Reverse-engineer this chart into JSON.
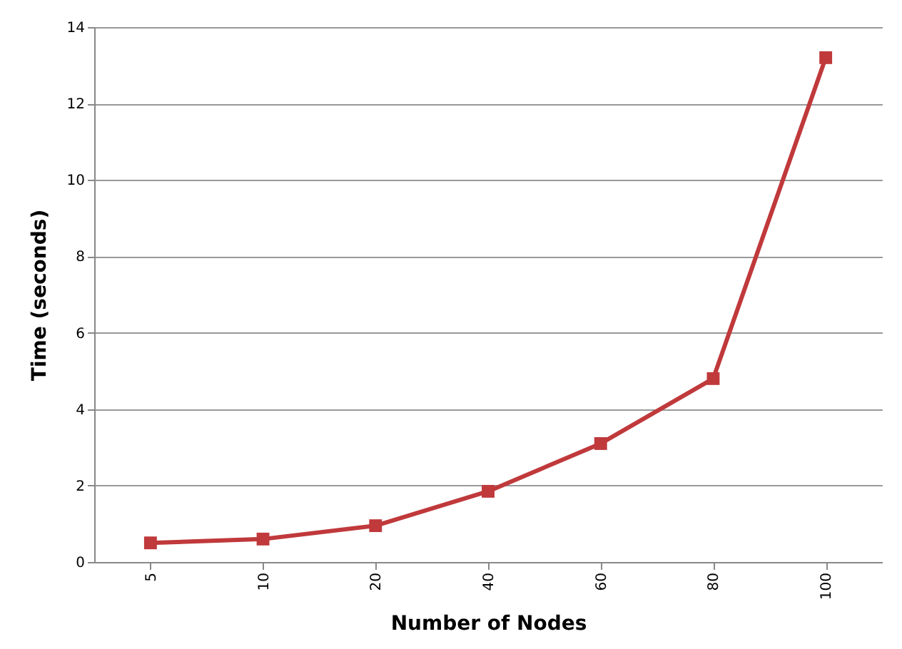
{
  "chart_data": {
    "type": "line",
    "xlabel": "Number of Nodes",
    "ylabel": "Time (seconds)",
    "categories": [
      "5",
      "10",
      "20",
      "40",
      "60",
      "80",
      "100"
    ],
    "series": [
      {
        "color": "#c0393b",
        "values": [
          0.5,
          0.6,
          0.95,
          1.85,
          3.1,
          4.8,
          13.2
        ]
      }
    ],
    "ylim": [
      0,
      14
    ],
    "yticks": [
      0,
      2,
      4,
      6,
      8,
      10,
      12,
      14
    ],
    "grid": "y",
    "marker": "square",
    "legend": false
  }
}
